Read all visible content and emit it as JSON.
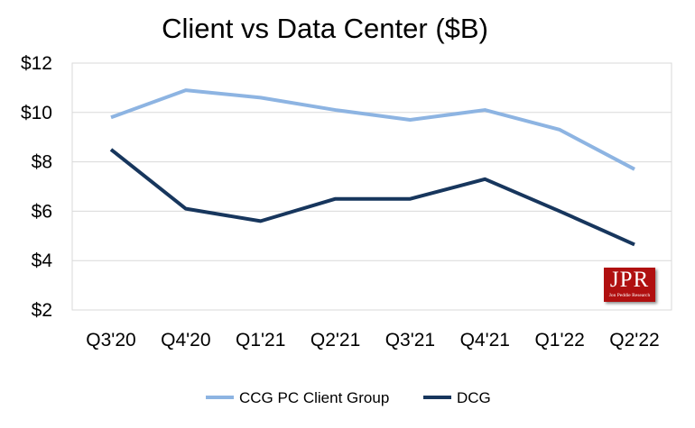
{
  "chart_data": {
    "type": "line",
    "title": "Client vs Data Center ($B)",
    "xlabel": "",
    "ylabel": "",
    "categories": [
      "Q3'20",
      "Q4'20",
      "Q1'21",
      "Q2'21",
      "Q3'21",
      "Q4'21",
      "Q1'22",
      "Q2'22"
    ],
    "ylim": [
      2,
      12
    ],
    "yticks": [
      2,
      4,
      6,
      8,
      10,
      12
    ],
    "ytick_labels": [
      "$2",
      "$4",
      "$6",
      "$8",
      "$10",
      "$12"
    ],
    "grid": "horizontal",
    "legend_position": "bottom",
    "series": [
      {
        "name": "CCG PC Client Group",
        "color": "#8db4e2",
        "values": [
          9.8,
          10.9,
          10.6,
          10.1,
          9.7,
          10.1,
          9.3,
          7.7
        ]
      },
      {
        "name": "DCG",
        "color": "#17365d",
        "values": [
          8.5,
          6.1,
          5.6,
          6.5,
          6.5,
          7.3,
          6.0,
          4.65
        ]
      }
    ]
  },
  "logo": {
    "text": "JPR",
    "subtext": "Jon Peddie Research"
  }
}
